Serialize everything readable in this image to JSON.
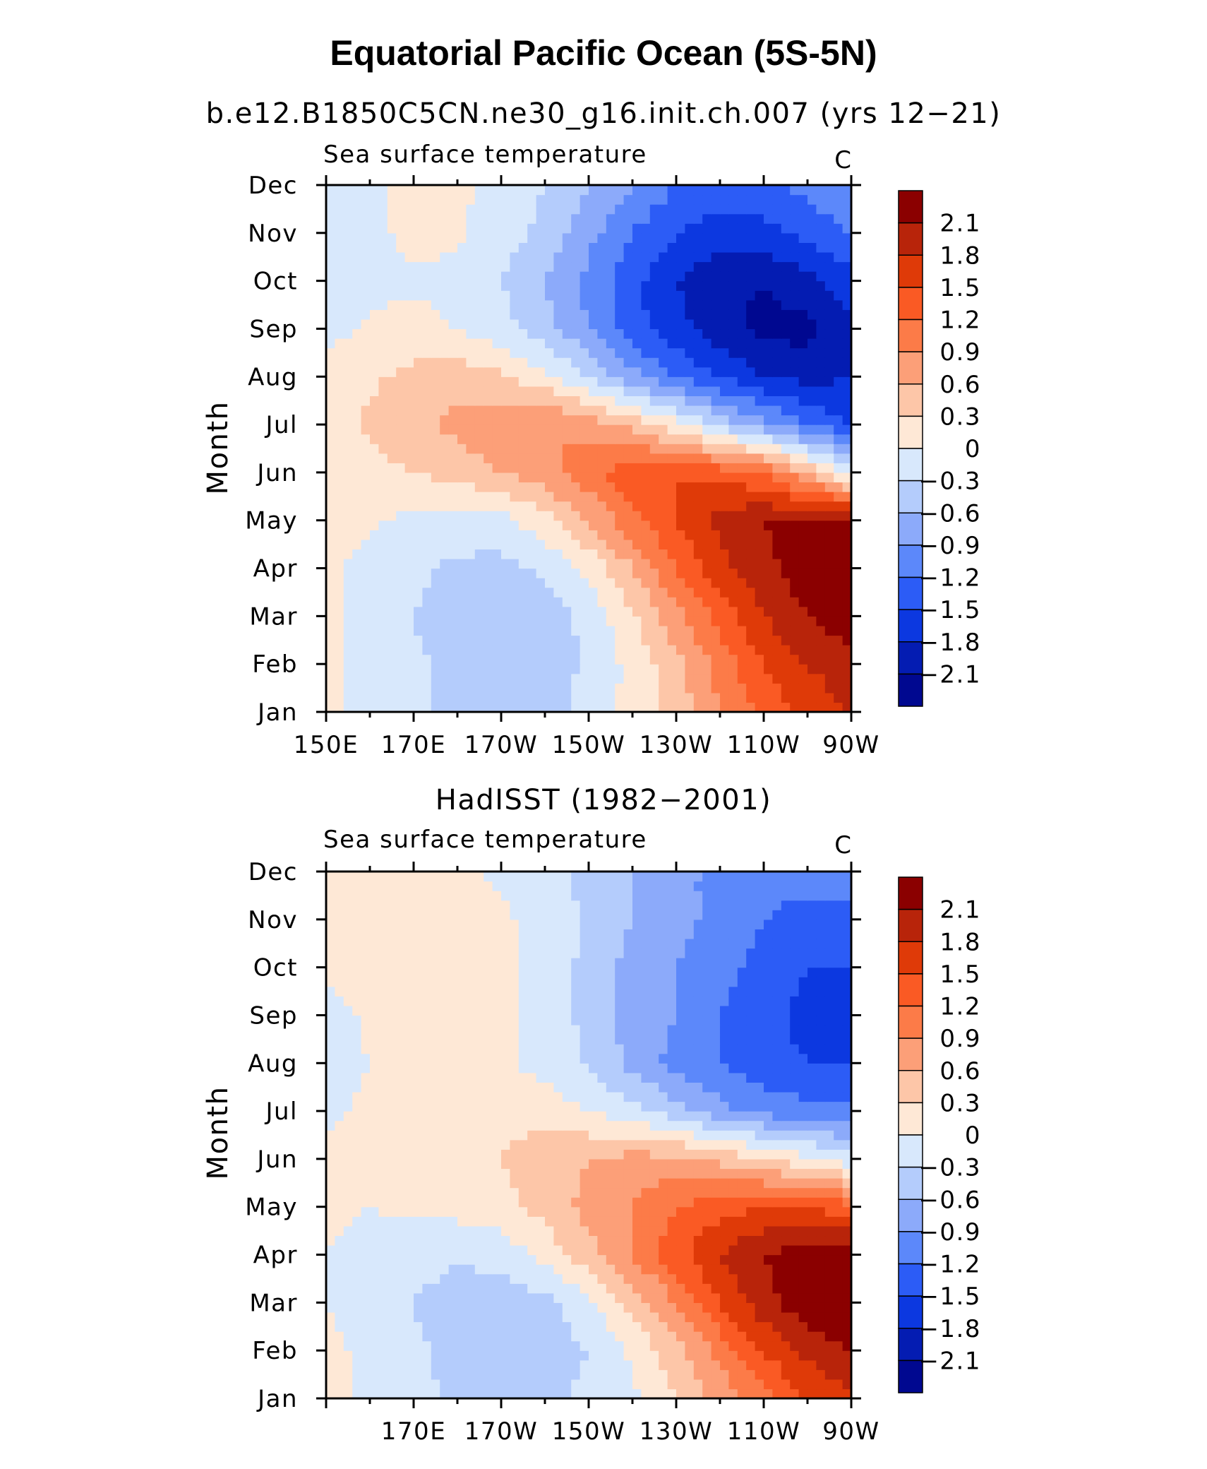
{
  "figure": {
    "title": "Equatorial Pacific Ocean (5S-5N)"
  },
  "colorbar": {
    "labels": [
      "2.1",
      "1.8",
      "1.5",
      "1.2",
      "0.9",
      "0.6",
      "0.3",
      "0",
      "−0.3",
      "−0.6",
      "−0.9",
      "−1.2",
      "−1.5",
      "−1.8",
      "−2.1"
    ],
    "colors": [
      "#8b0000",
      "#b8240a",
      "#df3a08",
      "#fa5a24",
      "#fc7b48",
      "#fc9f78",
      "#fdc6a8",
      "#fee8d6",
      "#d8e8fc",
      "#b4ccfc",
      "#8caafa",
      "#5c88fa",
      "#2c5cf6",
      "#0c38e0",
      "#041cb2",
      "#000890"
    ]
  },
  "chart_data": [
    {
      "type": "heatmap",
      "title": "b.e12.B1850C5CN.ne30_g16.init.ch.007 (yrs 12−21)",
      "left_string": "Sea surface temperature",
      "right_string": "C",
      "ylabel": "Month",
      "xlabel": "",
      "x_ticks": [
        "150E",
        "170E",
        "170W",
        "150W",
        "130W",
        "110W",
        "90W"
      ],
      "y_ticks": [
        "Jan",
        "Feb",
        "Mar",
        "Apr",
        "May",
        "Jun",
        "Jul",
        "Aug",
        "Sep",
        "Oct",
        "Nov",
        "Dec"
      ],
      "xlim": [
        150,
        270
      ],
      "ylim": [
        1,
        12
      ],
      "levels": [
        -2.1,
        -1.8,
        -1.5,
        -1.2,
        -0.9,
        -0.6,
        -0.3,
        0,
        0.3,
        0.6,
        0.9,
        1.2,
        1.5,
        1.8,
        2.1
      ],
      "x": [
        150,
        160,
        170,
        180,
        190,
        200,
        210,
        220,
        230,
        240,
        250,
        260,
        270
      ],
      "values": [
        [
          0.05,
          -0.1,
          -0.25,
          -0.4,
          -0.45,
          -0.4,
          -0.2,
          0.1,
          0.4,
          0.9,
          1.3,
          1.6,
          1.8
        ],
        [
          0.05,
          -0.1,
          -0.25,
          -0.4,
          -0.5,
          -0.45,
          -0.25,
          0.1,
          0.5,
          1.0,
          1.5,
          1.8,
          2.0
        ],
        [
          0.05,
          -0.1,
          -0.3,
          -0.45,
          -0.55,
          -0.5,
          -0.2,
          0.25,
          0.8,
          1.3,
          1.8,
          2.1,
          2.3
        ],
        [
          0.05,
          -0.1,
          -0.25,
          -0.35,
          -0.4,
          -0.25,
          0.1,
          0.6,
          1.2,
          1.7,
          2.0,
          2.3,
          2.4
        ],
        [
          0.1,
          0.05,
          -0.1,
          -0.15,
          -0.1,
          0.2,
          0.6,
          1.1,
          1.5,
          1.9,
          2.1,
          2.2,
          2.2
        ],
        [
          0.15,
          0.2,
          0.3,
          0.4,
          0.6,
          0.8,
          1.1,
          1.4,
          1.5,
          1.4,
          1.2,
          0.6,
          -0.2
        ],
        [
          0.2,
          0.35,
          0.5,
          0.7,
          0.85,
          0.9,
          0.8,
          0.5,
          0.1,
          -0.4,
          -0.8,
          -1.2,
          -1.5
        ],
        [
          0.1,
          0.25,
          0.4,
          0.45,
          0.35,
          0.1,
          -0.3,
          -0.8,
          -1.2,
          -1.5,
          -1.8,
          -1.9,
          -1.8
        ],
        [
          -0.1,
          0.05,
          0.1,
          0.0,
          -0.2,
          -0.5,
          -0.9,
          -1.4,
          -1.7,
          -2.0,
          -2.2,
          -2.2,
          -1.9
        ],
        [
          -0.15,
          -0.1,
          -0.05,
          -0.1,
          -0.3,
          -0.6,
          -1.0,
          -1.4,
          -1.8,
          -2.0,
          -2.1,
          -1.9,
          -1.6
        ],
        [
          -0.15,
          -0.1,
          0.1,
          0.05,
          -0.15,
          -0.4,
          -0.8,
          -1.2,
          -1.5,
          -1.7,
          -1.6,
          -1.4,
          -1.2
        ],
        [
          -0.1,
          -0.05,
          0.1,
          0.05,
          -0.1,
          -0.3,
          -0.6,
          -0.9,
          -1.2,
          -1.3,
          -1.3,
          -1.1,
          -0.9
        ]
      ]
    },
    {
      "type": "heatmap",
      "title": "HadISST (1982−2001)",
      "left_string": "Sea surface temperature",
      "right_string": "C",
      "ylabel": "Month",
      "xlabel": "",
      "x_ticks": [
        "170E",
        "170W",
        "150W",
        "130W",
        "110W",
        "90W"
      ],
      "y_ticks": [
        "Jan",
        "Feb",
        "Mar",
        "Apr",
        "May",
        "Jun",
        "Jul",
        "Aug",
        "Sep",
        "Oct",
        "Nov",
        "Dec"
      ],
      "xlim": [
        150,
        270
      ],
      "ylim": [
        1,
        12
      ],
      "levels": [
        -2.1,
        -1.8,
        -1.5,
        -1.2,
        -0.9,
        -0.6,
        -0.3,
        0,
        0.3,
        0.6,
        0.9,
        1.2,
        1.5,
        1.8,
        2.1
      ],
      "x": [
        150,
        160,
        170,
        180,
        190,
        200,
        210,
        220,
        230,
        240,
        250,
        260,
        270
      ],
      "values": [
        [
          0.05,
          -0.05,
          -0.2,
          -0.35,
          -0.4,
          -0.35,
          -0.25,
          -0.05,
          0.3,
          0.7,
          1.1,
          1.5,
          1.7
        ],
        [
          0.05,
          -0.05,
          -0.25,
          -0.4,
          -0.5,
          -0.45,
          -0.3,
          0.05,
          0.5,
          1.0,
          1.5,
          1.9,
          2.1
        ],
        [
          0.0,
          -0.1,
          -0.3,
          -0.45,
          -0.5,
          -0.4,
          -0.1,
          0.4,
          0.9,
          1.5,
          2.0,
          2.3,
          2.4
        ],
        [
          0.0,
          -0.1,
          -0.2,
          -0.25,
          -0.2,
          0.1,
          0.5,
          0.9,
          1.4,
          1.8,
          2.1,
          2.3,
          2.3
        ],
        [
          0.05,
          0.0,
          0.05,
          0.1,
          0.2,
          0.4,
          0.7,
          0.9,
          1.2,
          1.4,
          1.5,
          1.5,
          1.3
        ],
        [
          0.05,
          0.1,
          0.15,
          0.2,
          0.3,
          0.5,
          0.6,
          0.7,
          0.7,
          0.5,
          0.3,
          0.1,
          -0.2
        ],
        [
          -0.05,
          0.05,
          0.1,
          0.15,
          0.2,
          0.15,
          0.0,
          -0.2,
          -0.5,
          -0.8,
          -1.0,
          -1.1,
          -1.1
        ],
        [
          -0.15,
          0.0,
          0.1,
          0.15,
          0.05,
          -0.1,
          -0.35,
          -0.7,
          -1.0,
          -1.2,
          -1.4,
          -1.5,
          -1.5
        ],
        [
          -0.1,
          0.05,
          0.15,
          0.3,
          0.05,
          -0.1,
          -0.4,
          -0.7,
          -0.9,
          -1.2,
          -1.4,
          -1.6,
          -1.6
        ],
        [
          0.05,
          0.1,
          0.15,
          0.15,
          0.05,
          -0.1,
          -0.4,
          -0.7,
          -0.9,
          -1.1,
          -1.3,
          -1.5,
          -1.5
        ],
        [
          0.05,
          0.1,
          0.1,
          0.1,
          0.05,
          -0.1,
          -0.35,
          -0.6,
          -0.8,
          -1.0,
          -1.2,
          -1.3,
          -1.3
        ],
        [
          0.05,
          0.1,
          0.1,
          0.05,
          -0.05,
          -0.2,
          -0.4,
          -0.6,
          -0.8,
          -1.0,
          -1.1,
          -1.1,
          -1.0
        ]
      ]
    }
  ]
}
